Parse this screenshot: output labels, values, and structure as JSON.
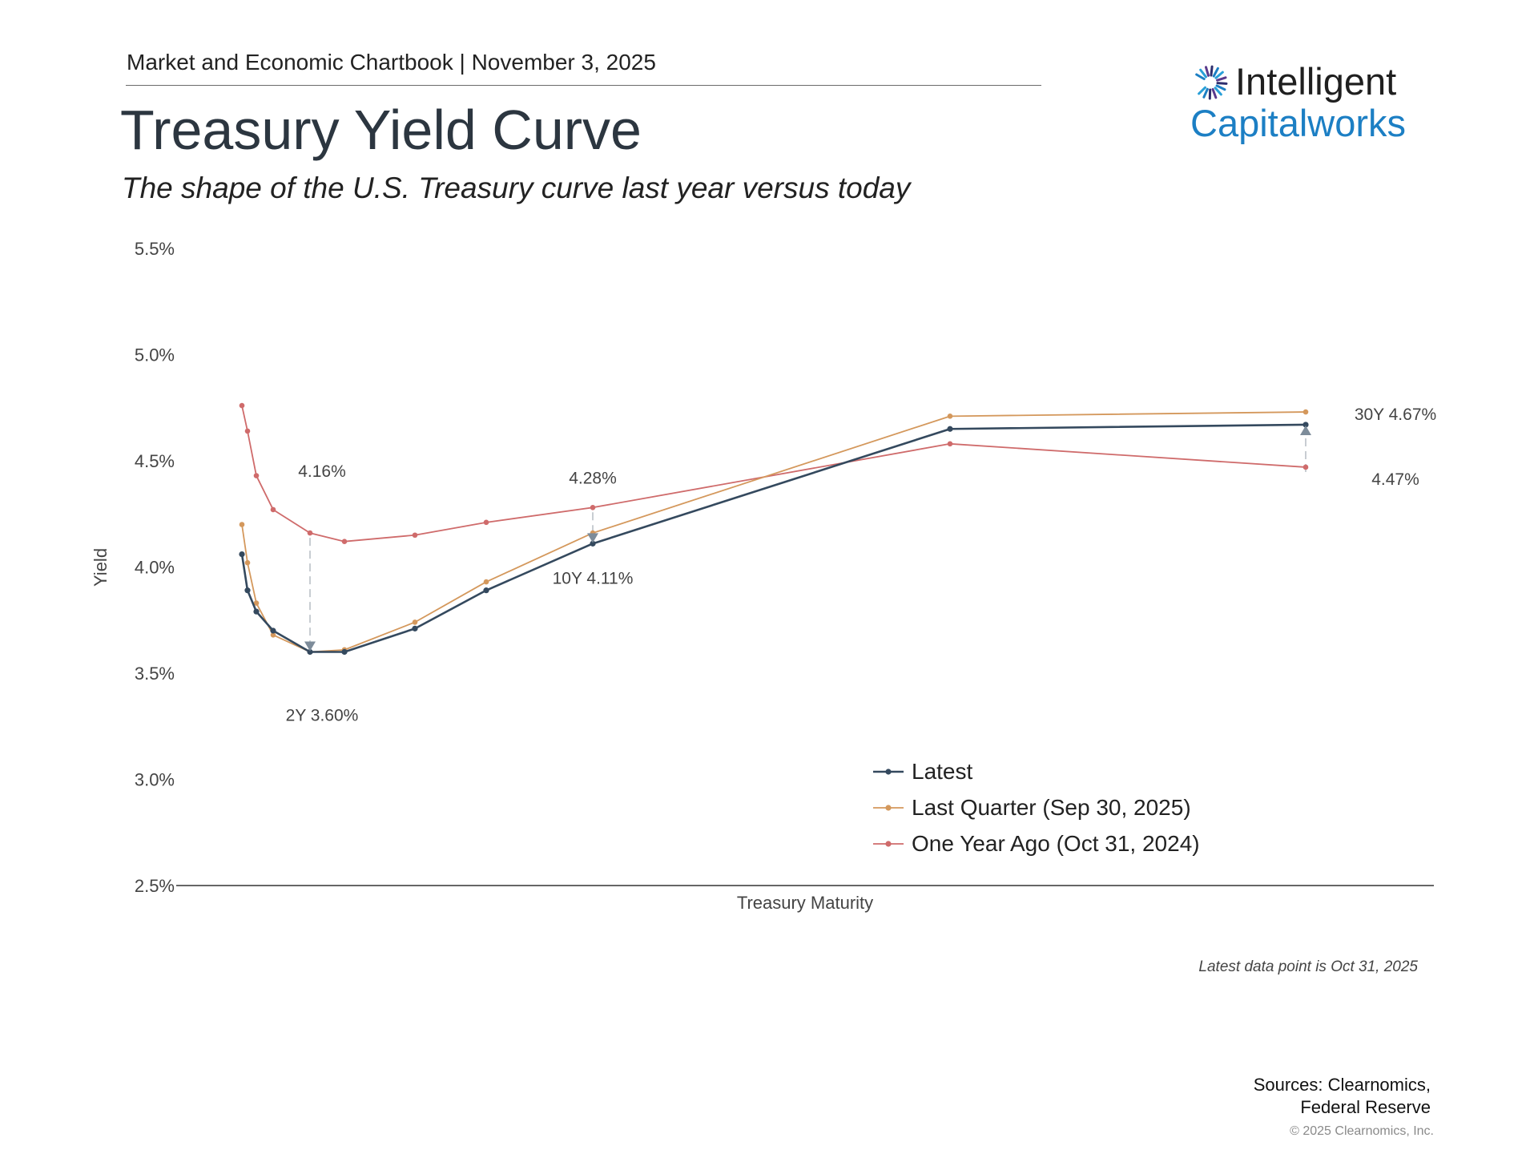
{
  "header": {
    "kicker": "Market and Economic Chartbook | November 3, 2025",
    "title": "Treasury Yield Curve",
    "subtitle": "The shape of the U.S. Treasury curve last year versus today"
  },
  "logo": {
    "word1": "Intelligent",
    "word2": "Capitalworks",
    "brand_color": "#1c7fc4"
  },
  "chart_data": {
    "type": "line",
    "ylabel": "Yield",
    "xlabel": "Treasury Maturity",
    "ylim": [
      2.5,
      5.5
    ],
    "yticks": [
      "2.5%",
      "3.0%",
      "3.5%",
      "4.0%",
      "4.5%",
      "5.0%",
      "5.5%"
    ],
    "x_maturity_years": [
      0.083,
      0.25,
      0.5,
      1,
      2,
      3,
      5,
      7,
      10,
      20,
      30
    ],
    "series": [
      {
        "name": "Latest",
        "color": "#34495e",
        "values": [
          4.06,
          3.89,
          3.79,
          3.7,
          3.6,
          3.6,
          3.71,
          3.89,
          4.11,
          4.65,
          4.67
        ]
      },
      {
        "name": "Last Quarter (Sep 30, 2025)",
        "color": "#d4985c",
        "values": [
          4.2,
          4.02,
          3.83,
          3.68,
          3.6,
          3.61,
          3.74,
          3.93,
          4.16,
          4.71,
          4.73
        ]
      },
      {
        "name": "One Year Ago (Oct 31, 2024)",
        "color": "#cf6b6b",
        "values": [
          4.76,
          4.64,
          4.43,
          4.27,
          4.16,
          4.12,
          4.15,
          4.21,
          4.28,
          4.58,
          4.47
        ]
      }
    ],
    "annotations": [
      {
        "text": "4.16%"
      },
      {
        "text": "2Y 3.60%"
      },
      {
        "text": "4.28%"
      },
      {
        "text": "10Y 4.11%"
      },
      {
        "text": "30Y 4.67%"
      },
      {
        "text": "4.47%"
      }
    ],
    "legend_position": "bottom-right",
    "grid": false
  },
  "footnote": "Latest data point is Oct 31, 2025",
  "sources": {
    "line1": "Sources: Clearnomics,",
    "line2": "Federal Reserve"
  },
  "copyright": "© 2025 Clearnomics, Inc."
}
